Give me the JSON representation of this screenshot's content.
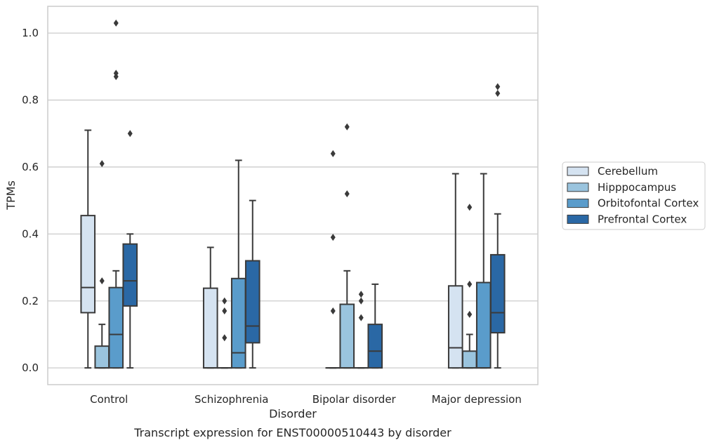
{
  "caption": "Transcript expression for ENST00000510443 by disorder",
  "chart_data": {
    "type": "boxplot",
    "xlabel": "Disorder",
    "ylabel": "TPMs",
    "ylim": [
      -0.05,
      1.08
    ],
    "yticks": [
      "0.0",
      "0.2",
      "0.4",
      "0.6",
      "0.8",
      "1.0"
    ],
    "ytick_values": [
      0,
      0.2,
      0.4,
      0.6,
      0.8,
      1.0
    ],
    "grid": true,
    "legend_position": "right",
    "categories": [
      "Control",
      "Schizophrenia",
      "Bipolar disorder",
      "Major depression"
    ],
    "series": [
      {
        "name": "Cerebellum",
        "color": "#d5e3f1",
        "boxes": [
          {
            "whislo": 0.0,
            "q1": 0.165,
            "med": 0.24,
            "q3": 0.455,
            "whishi": 0.71,
            "fliers": []
          },
          {
            "whislo": 0.0,
            "q1": 0.0,
            "med": 0.0,
            "q3": 0.238,
            "whishi": 0.36,
            "fliers": []
          },
          {
            "whislo": 0.0,
            "q1": 0.0,
            "med": 0.0,
            "q3": 0.0,
            "whishi": 0.0,
            "fliers": [
              0.17,
              0.39,
              0.64
            ]
          },
          {
            "whislo": 0.0,
            "q1": 0.0,
            "med": 0.06,
            "q3": 0.245,
            "whishi": 0.58,
            "fliers": []
          }
        ]
      },
      {
        "name": "Hipppocampus",
        "color": "#9ac4de",
        "boxes": [
          {
            "whislo": 0.0,
            "q1": 0.0,
            "med": 0.0,
            "q3": 0.065,
            "whishi": 0.13,
            "fliers": [
              0.26,
              0.61
            ]
          },
          {
            "whislo": 0.0,
            "q1": 0.0,
            "med": 0.0,
            "q3": 0.0,
            "whishi": 0.0,
            "fliers": [
              0.09,
              0.17,
              0.2
            ]
          },
          {
            "whislo": 0.0,
            "q1": 0.0,
            "med": 0.0,
            "q3": 0.19,
            "whishi": 0.29,
            "fliers": [
              0.52,
              0.72
            ]
          },
          {
            "whislo": 0.0,
            "q1": 0.0,
            "med": 0.0,
            "q3": 0.05,
            "whishi": 0.1,
            "fliers": [
              0.16,
              0.25,
              0.48
            ]
          }
        ]
      },
      {
        "name": "Orbitofontal Cortex",
        "color": "#5a9ccb",
        "boxes": [
          {
            "whislo": 0.0,
            "q1": 0.0,
            "med": 0.1,
            "q3": 0.24,
            "whishi": 0.29,
            "fliers": [
              0.87,
              0.88,
              1.03
            ]
          },
          {
            "whislo": 0.0,
            "q1": 0.0,
            "med": 0.045,
            "q3": 0.267,
            "whishi": 0.62,
            "fliers": []
          },
          {
            "whislo": 0.0,
            "q1": 0.0,
            "med": 0.0,
            "q3": 0.0,
            "whishi": 0.0,
            "fliers": [
              0.15,
              0.2,
              0.22
            ]
          },
          {
            "whislo": 0.0,
            "q1": 0.0,
            "med": 0.0,
            "q3": 0.255,
            "whishi": 0.58,
            "fliers": []
          }
        ]
      },
      {
        "name": "Prefrontal Cortex",
        "color": "#2a68a5",
        "boxes": [
          {
            "whislo": 0.0,
            "q1": 0.185,
            "med": 0.26,
            "q3": 0.37,
            "whishi": 0.4,
            "fliers": [
              0.7
            ]
          },
          {
            "whislo": 0.0,
            "q1": 0.075,
            "med": 0.125,
            "q3": 0.32,
            "whishi": 0.5,
            "fliers": []
          },
          {
            "whislo": 0.0,
            "q1": 0.0,
            "med": 0.05,
            "q3": 0.13,
            "whishi": 0.25,
            "fliers": []
          },
          {
            "whislo": 0.0,
            "q1": 0.105,
            "med": 0.165,
            "q3": 0.338,
            "whishi": 0.46,
            "fliers": [
              0.82,
              0.84
            ]
          }
        ]
      }
    ]
  }
}
